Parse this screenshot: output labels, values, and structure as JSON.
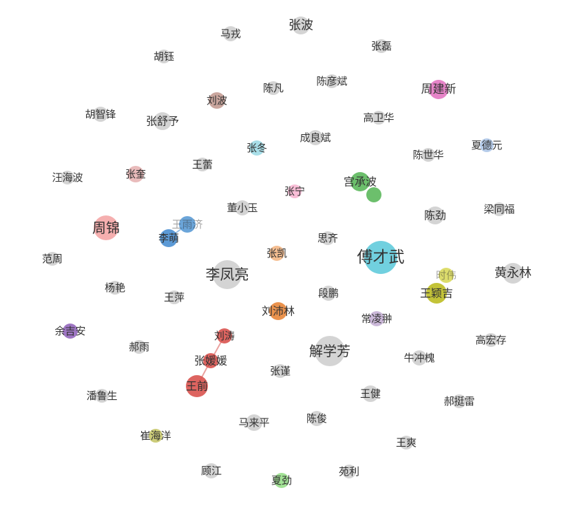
{
  "nodes": [
    {
      "label": "马戎",
      "color": "#cccccc",
      "size": 11
    },
    {
      "label": "张波",
      "color": "#cccccc",
      "size": 13
    },
    {
      "label": "胡钰",
      "color": "#cccccc",
      "size": 10
    },
    {
      "label": "张磊",
      "color": "#cccccc",
      "size": 10
    },
    {
      "label": "陈凡",
      "color": "#cccccc",
      "size": 10
    },
    {
      "label": "陈彦斌",
      "color": "#cccccc",
      "size": 10
    },
    {
      "label": "周建新",
      "color": "#e377c2",
      "size": 14
    },
    {
      "label": "刘波",
      "color": "#c49c94",
      "size": 12
    },
    {
      "label": "胡智锋",
      "color": "#cccccc",
      "size": 11
    },
    {
      "label": "张舒予",
      "color": "#cccccc",
      "size": 13
    },
    {
      "label": "高卫华",
      "color": "#cccccc",
      "size": 10
    },
    {
      "label": "张冬",
      "color": "#9edae5",
      "size": 11
    },
    {
      "label": "成良斌",
      "color": "#cccccc",
      "size": 11
    },
    {
      "label": "陈世华",
      "color": "#cccccc",
      "size": 10
    },
    {
      "label": "夏德元",
      "color": "#aec7e8",
      "size": 10
    },
    {
      "label": "汪海波",
      "color": "#cccccc",
      "size": 10
    },
    {
      "label": "张奎",
      "color": "#e7b4b4",
      "size": 12
    },
    {
      "label": "王蕾",
      "color": "#cccccc",
      "size": 10
    },
    {
      "label": "宫承波",
      "color": "#5cb85c",
      "size": 14
    },
    {
      "label": "张宁",
      "color": "#f7b6d2",
      "size": 10
    },
    {
      "label": "董小玉",
      "color": "#cccccc",
      "size": 11
    },
    {
      "label": "梁同福",
      "color": "#cccccc",
      "size": 10
    },
    {
      "label": "陈劲",
      "color": "#cccccc",
      "size": 13
    },
    {
      "label": "周锦",
      "color": "#f4a6a6",
      "size": 18
    },
    {
      "label": "王雨济",
      "color": "#5b9bd5",
      "size": 12
    },
    {
      "label": "李萌",
      "color": "#4a8fd2",
      "size": 13
    },
    {
      "label": "思齐",
      "color": "#cccccc",
      "size": 10
    },
    {
      "label": "张凯",
      "color": "#f4b785",
      "size": 11
    },
    {
      "label": "傅才武",
      "color": "#62cbdb",
      "size": 24
    },
    {
      "label": "范周",
      "color": "#cccccc",
      "size": 10
    },
    {
      "label": "李凤亮",
      "color": "#cccccc",
      "size": 21
    },
    {
      "label": "时伟",
      "color": "#d9d95c",
      "size": 11
    },
    {
      "label": "黄永林",
      "color": "#cccccc",
      "size": 15
    },
    {
      "label": "杨艳",
      "color": "#cccccc",
      "size": 10
    },
    {
      "label": "段鹏",
      "color": "#cccccc",
      "size": 11
    },
    {
      "label": "王颖吉",
      "color": "#bcbd22",
      "size": 15
    },
    {
      "label": "王萍",
      "color": "#cccccc",
      "size": 10
    },
    {
      "label": "刘沛林",
      "color": "#e8863a",
      "size": 13
    },
    {
      "label": "常凌翀",
      "color": "#c5b0d5",
      "size": 11
    },
    {
      "label": "余吉安",
      "color": "#9467bd",
      "size": 11
    },
    {
      "label": "刘涛",
      "color": "#d9534f",
      "size": 11
    },
    {
      "label": "高宏存",
      "color": "#cccccc",
      "size": 10
    },
    {
      "label": "郝雨",
      "color": "#cccccc",
      "size": 10
    },
    {
      "label": "解学芳",
      "color": "#cccccc",
      "size": 22
    },
    {
      "label": "牛冲槐",
      "color": "#cccccc",
      "size": 11
    },
    {
      "label": "张媛媛",
      "color": "#d9534f",
      "size": 11
    },
    {
      "label": "张谨",
      "color": "#cccccc",
      "size": 10
    },
    {
      "label": "王前",
      "color": "#d9534f",
      "size": 16
    },
    {
      "label": "王健",
      "color": "#cccccc",
      "size": 12
    },
    {
      "label": "潘鲁生",
      "color": "#cccccc",
      "size": 10
    },
    {
      "label": "郝挺雷",
      "color": "#cccccc",
      "size": 10
    },
    {
      "label": "马来平",
      "color": "#cccccc",
      "size": 12
    },
    {
      "label": "陈俊",
      "color": "#cccccc",
      "size": 11
    },
    {
      "label": "崔海洋",
      "color": "#c7c76a",
      "size": 10
    },
    {
      "label": "王爽",
      "color": "#cccccc",
      "size": 10
    },
    {
      "label": "顾江",
      "color": "#cccccc",
      "size": 11
    },
    {
      "label": "夏劲",
      "color": "#98df8a",
      "size": 11
    },
    {
      "label": "苑利",
      "color": "#cccccc",
      "size": 10
    },
    {
      "label": "",
      "color": "#5cb85c",
      "size": 11
    }
  ],
  "edges": [
    {
      "source": "刘涛",
      "target": "张媛媛",
      "color": "#d9534f"
    },
    {
      "source": "张媛媛",
      "target": "王前",
      "color": "#d9534f"
    },
    {
      "source": "王雨济",
      "target": "李萌",
      "color": "#4a8fd2"
    }
  ]
}
